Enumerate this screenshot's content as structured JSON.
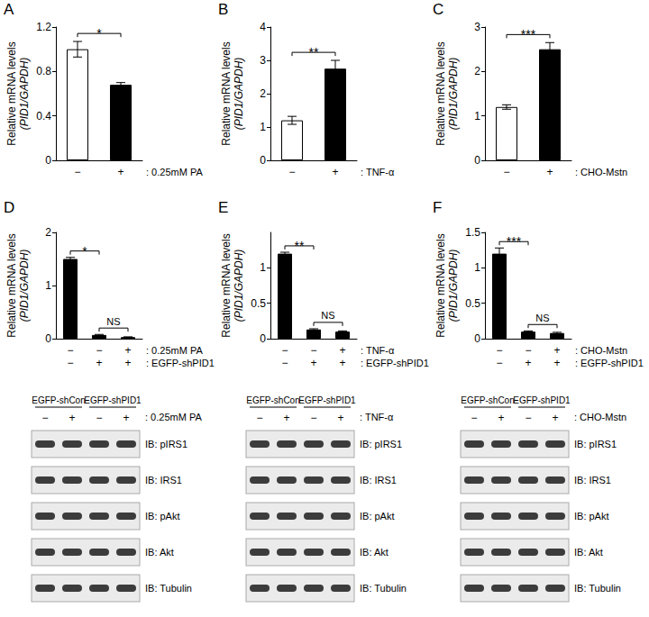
{
  "chart_data": [
    {
      "type": "bar",
      "panel": "A",
      "ylabel": [
        "Relative mRNA levels",
        "(PID1/GAPDH)"
      ],
      "categories": [
        null,
        null
      ],
      "conditions": [
        {
          "label": ": 0.25mM PA",
          "marks": [
            "−",
            "+"
          ]
        }
      ],
      "values": [
        1.0,
        0.68
      ],
      "errors": [
        0.07,
        0.02
      ],
      "colors": [
        "#ffffff",
        "#000000"
      ],
      "ylim": [
        0,
        1.2
      ],
      "yticks": [
        0,
        0.4,
        0.8,
        1.2
      ],
      "significance": [
        {
          "from": 0,
          "to": 1,
          "label": "*"
        }
      ],
      "grid": false
    },
    {
      "type": "bar",
      "panel": "B",
      "ylabel": [
        "Relative mRNA levels",
        "(PID1/GAPDH)"
      ],
      "categories": [
        null,
        null
      ],
      "conditions": [
        {
          "label": ": TNF-α",
          "marks": [
            "−",
            "+"
          ]
        }
      ],
      "values": [
        1.2,
        2.75
      ],
      "errors": [
        0.12,
        0.25
      ],
      "colors": [
        "#ffffff",
        "#000000"
      ],
      "ylim": [
        0,
        4
      ],
      "yticks": [
        0,
        1,
        2,
        3,
        4
      ],
      "significance": [
        {
          "from": 0,
          "to": 1,
          "label": "**"
        }
      ],
      "grid": false
    },
    {
      "type": "bar",
      "panel": "C",
      "ylabel": [
        "Relative mRNA levels",
        "(PID1/GAPDH)"
      ],
      "categories": [
        null,
        null
      ],
      "conditions": [
        {
          "label": ": CHO-Mstn",
          "marks": [
            "−",
            "+"
          ]
        }
      ],
      "values": [
        1.2,
        2.5
      ],
      "errors": [
        0.05,
        0.15
      ],
      "colors": [
        "#ffffff",
        "#000000"
      ],
      "ylim": [
        0,
        3
      ],
      "yticks": [
        0,
        1,
        2,
        3
      ],
      "significance": [
        {
          "from": 0,
          "to": 1,
          "label": "***"
        }
      ],
      "grid": false
    },
    {
      "type": "bar",
      "panel": "D",
      "ylabel": [
        "Relative mRNA levels",
        "(PID1/GAPDH)"
      ],
      "categories": [
        null,
        null,
        null
      ],
      "conditions": [
        {
          "label": ": 0.25mM PA",
          "marks": [
            "−",
            "−",
            "+"
          ]
        },
        {
          "label": ": EGFP-shPID1",
          "marks": [
            "−",
            "+",
            "+"
          ]
        }
      ],
      "values": [
        1.5,
        0.07,
        0.03
      ],
      "errors": [
        0.03,
        0.01,
        0.005
      ],
      "color": "#000000",
      "ylim": [
        0,
        2
      ],
      "yticks": [
        0,
        1,
        2
      ],
      "significance": [
        {
          "from": 0,
          "to": 1,
          "label": "*"
        },
        {
          "from": 1,
          "to": 2,
          "label": "NS"
        }
      ],
      "grid": false
    },
    {
      "type": "bar",
      "panel": "E",
      "ylabel": [
        "Relative mRNA levels",
        "(PID1/GAPDH)"
      ],
      "categories": [
        null,
        null,
        null
      ],
      "conditions": [
        {
          "label": ": TNF-α",
          "marks": [
            "−",
            "−",
            "+"
          ]
        },
        {
          "label": ": EGFP-shPID1",
          "marks": [
            "−",
            "+",
            "+"
          ]
        }
      ],
      "values": [
        1.2,
        0.13,
        0.1
      ],
      "errors": [
        0.02,
        0.01,
        0.01
      ],
      "color": "#000000",
      "ylim": [
        0,
        1.5
      ],
      "yticks": [
        0,
        0.5,
        1
      ],
      "significance": [
        {
          "from": 0,
          "to": 1,
          "label": "**"
        },
        {
          "from": 1,
          "to": 2,
          "label": "NS"
        }
      ],
      "grid": false
    },
    {
      "type": "bar",
      "panel": "F",
      "ylabel": [
        "Relative mRNA levels",
        "(PID1/GAPDH)"
      ],
      "categories": [
        null,
        null,
        null
      ],
      "conditions": [
        {
          "label": ": CHO-Mstn",
          "marks": [
            "−",
            "−",
            "+"
          ]
        },
        {
          "label": ": EGFP-shPID1",
          "marks": [
            "−",
            "+",
            "+"
          ]
        }
      ],
      "values": [
        1.2,
        0.1,
        0.08
      ],
      "errors": [
        0.08,
        0.01,
        0.01
      ],
      "color": "#000000",
      "ylim": [
        0,
        1.5
      ],
      "yticks": [
        0,
        0.5,
        1,
        1.5
      ],
      "significance": [
        {
          "from": 0,
          "to": 1,
          "label": "***"
        },
        {
          "from": 1,
          "to": 2,
          "label": "NS"
        }
      ],
      "grid": false
    }
  ],
  "blots": [
    {
      "groups": [
        "EGFP-shCon",
        "EGFP-shPID1"
      ],
      "lanes": [
        "−",
        "+",
        "−",
        "+"
      ],
      "treatment": ": 0.25mM PA",
      "rows": [
        "IB: pIRS1",
        "IB: IRS1",
        "IB: pAkt",
        "IB: Akt",
        "IB: Tubulin"
      ]
    },
    {
      "groups": [
        "EGFP-shCon",
        "EGFP-shPID1"
      ],
      "lanes": [
        "−",
        "+",
        "−",
        "+"
      ],
      "treatment": ": TNF-α",
      "rows": [
        "IB: pIRS1",
        "IB: IRS1",
        "IB: pAkt",
        "IB: Akt",
        "IB: Tubulin"
      ]
    },
    {
      "groups": [
        "EGFP-shCon",
        "EGFP-shPID1"
      ],
      "lanes": [
        "−",
        "+",
        "−",
        "+"
      ],
      "treatment": ": CHO-Mstn",
      "rows": [
        "IB: pIRS1",
        "IB: IRS1",
        "IB: pAkt",
        "IB: Akt",
        "IB: Tubulin"
      ]
    }
  ]
}
